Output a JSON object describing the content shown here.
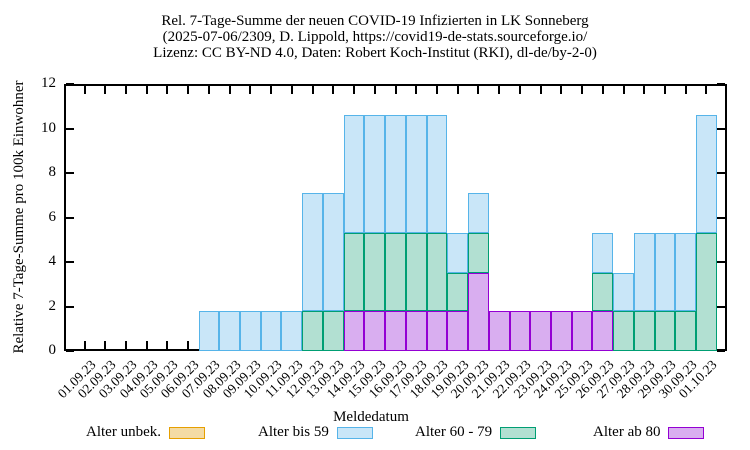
{
  "chart_data": {
    "type": "bar",
    "stacked": true,
    "grid": false,
    "legend_position": "bottom",
    "title_lines": [
      "Rel. 7-Tage-Summe der neuen COVID-19 Infizierten in LK Sonneberg",
      "(2025-07-06/2309, D. Lippold, https://covid19-de-stats.sourceforge.io/",
      "Lizenz: CC BY-ND 4.0, Daten: Robert Koch-Institut (RKI), dl-de/by-2-0)"
    ],
    "xlabel": "Meldedatum",
    "ylabel": "Relative 7-Tage-Summe pro 100k Einwohner",
    "ylim": [
      0,
      12
    ],
    "yticks": [
      0,
      2,
      4,
      6,
      8,
      10,
      12
    ],
    "categories": [
      "01.09.23",
      "02.09.23",
      "03.09.23",
      "04.09.23",
      "05.09.23",
      "06.09.23",
      "07.09.23",
      "08.09.23",
      "09.09.23",
      "10.09.23",
      "11.09.23",
      "12.09.23",
      "13.09.23",
      "14.09.23",
      "15.09.23",
      "16.09.23",
      "17.09.23",
      "18.09.23",
      "19.09.23",
      "20.09.23",
      "21.09.23",
      "22.09.23",
      "23.09.23",
      "24.09.23",
      "25.09.23",
      "26.09.23",
      "27.09.23",
      "28.09.23",
      "29.09.23",
      "30.09.23",
      "01.10.23"
    ],
    "stack_order_bottom_to_top": [
      "alter-ab-80",
      "alter-60-79",
      "alter-bis-59",
      "alter-unbek"
    ],
    "series": [
      {
        "key": "alter-unbek",
        "name": "Alter unbek.",
        "color": "#e69f00",
        "fill": "#f4dba4",
        "values": [
          0,
          0,
          0,
          0,
          0,
          0,
          0,
          0,
          0,
          0,
          0,
          0,
          0,
          0,
          0,
          0,
          0,
          0,
          0,
          0,
          0,
          0,
          0,
          0,
          0,
          0,
          0,
          0,
          0,
          0,
          0
        ]
      },
      {
        "key": "alter-bis-59",
        "name": "Alter bis 59",
        "color": "#56b4e9",
        "fill": "#c9e6f8",
        "values": [
          0,
          0,
          0,
          0,
          0,
          0,
          1.8,
          1.8,
          1.8,
          1.8,
          1.8,
          5.3,
          5.3,
          5.3,
          5.3,
          5.3,
          5.3,
          5.3,
          1.8,
          1.8,
          0,
          0,
          0,
          0,
          0,
          1.8,
          1.7,
          3.5,
          3.5,
          3.5,
          5.3
        ]
      },
      {
        "key": "alter-60-79",
        "name": "Alter 60 - 79",
        "color": "#009e73",
        "fill": "#b2e0d2",
        "values": [
          0,
          0,
          0,
          0,
          0,
          0,
          0,
          0,
          0,
          0,
          0,
          1.8,
          1.8,
          3.5,
          3.5,
          3.5,
          3.5,
          3.5,
          1.7,
          1.8,
          0,
          0,
          0,
          0,
          0,
          1.7,
          1.8,
          1.8,
          1.8,
          1.8,
          5.3
        ]
      },
      {
        "key": "alter-ab-80",
        "name": "Alter ab 80",
        "color": "#9400d3",
        "fill": "#d9aef0",
        "values": [
          0,
          0,
          0,
          0,
          0,
          0,
          0,
          0,
          0,
          0,
          0,
          0,
          0,
          1.8,
          1.8,
          1.8,
          1.8,
          1.8,
          1.8,
          3.5,
          1.8,
          1.8,
          1.8,
          1.8,
          1.8,
          1.8,
          0,
          0,
          0,
          0,
          0
        ]
      }
    ]
  }
}
